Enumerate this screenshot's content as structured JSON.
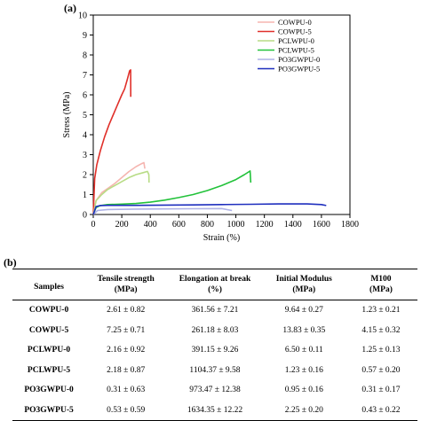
{
  "panel_a_label": "(a)",
  "panel_b_label": "(b)",
  "chart_data": {
    "type": "line",
    "title": "",
    "xlabel": "Strain (%)",
    "ylabel": "Stress (MPa)",
    "xlim": [
      0,
      1800
    ],
    "ylim": [
      0,
      10
    ],
    "xticks": [
      "0",
      "200",
      "400",
      "600",
      "800",
      "1000",
      "1200",
      "1400",
      "1600",
      "1800"
    ],
    "yticks": [
      "0",
      "1",
      "2",
      "3",
      "4",
      "5",
      "6",
      "7",
      "8",
      "9",
      "10"
    ],
    "legend_position": "top-right",
    "grid": false,
    "series": [
      {
        "name": "COWPU-0",
        "color": "#f5b5b0",
        "x": [
          0,
          20,
          60,
          100,
          150,
          200,
          250,
          300,
          340,
          355,
          362
        ],
        "y": [
          0,
          0.7,
          1.1,
          1.3,
          1.55,
          1.85,
          2.15,
          2.4,
          2.55,
          2.6,
          2.3
        ]
      },
      {
        "name": "COWPU-5",
        "color": "#e0302a",
        "x": [
          0,
          10,
          25,
          50,
          80,
          110,
          140,
          170,
          200,
          220,
          240,
          255,
          262,
          263
        ],
        "y": [
          0,
          1.8,
          2.5,
          3.2,
          3.9,
          4.5,
          5.0,
          5.5,
          6.0,
          6.3,
          6.8,
          7.2,
          7.25,
          5.9
        ]
      },
      {
        "name": "PCLWPU-0",
        "color": "#b8dc86",
        "x": [
          0,
          20,
          60,
          100,
          150,
          200,
          250,
          300,
          350,
          380,
          390,
          391
        ],
        "y": [
          0,
          0.7,
          1.0,
          1.25,
          1.45,
          1.65,
          1.85,
          2.0,
          2.1,
          2.16,
          2.0,
          1.6
        ]
      },
      {
        "name": "PCLWPU-5",
        "color": "#22c23a",
        "x": [
          0,
          20,
          50,
          100,
          200,
          300,
          400,
          500,
          600,
          700,
          800,
          900,
          1000,
          1060,
          1100,
          1104
        ],
        "y": [
          0,
          0.35,
          0.45,
          0.5,
          0.52,
          0.55,
          0.62,
          0.72,
          0.85,
          1.0,
          1.2,
          1.45,
          1.75,
          2.0,
          2.18,
          1.6
        ]
      },
      {
        "name": "PO3GWPU-0",
        "color": "#aeb2e6",
        "x": [
          0,
          30,
          100,
          300,
          500,
          700,
          900,
          973
        ],
        "y": [
          0,
          0.2,
          0.25,
          0.27,
          0.28,
          0.29,
          0.3,
          0.2
        ]
      },
      {
        "name": "PO3GWPU-5",
        "color": "#1f2fbe",
        "x": [
          0,
          20,
          50,
          100,
          300,
          500,
          700,
          900,
          1100,
          1300,
          1500,
          1600,
          1634
        ],
        "y": [
          0,
          0.4,
          0.45,
          0.46,
          0.46,
          0.47,
          0.48,
          0.5,
          0.51,
          0.53,
          0.53,
          0.5,
          0.45
        ]
      }
    ]
  },
  "table": {
    "headers": [
      {
        "top": "Samples",
        "bottom": ""
      },
      {
        "top": "Tensile strength",
        "bottom": "(MPa)"
      },
      {
        "top": "Elongation at break",
        "bottom": "(%)"
      },
      {
        "top": "Initial Modulus",
        "bottom": "(MPa)"
      },
      {
        "top": "M100",
        "bottom": "(MPa)"
      }
    ],
    "rows": [
      [
        "COWPU-0",
        "2.61 ± 0.82",
        "361.56 ± 7.21",
        "9.64 ± 0.27",
        "1.23 ± 0.21"
      ],
      [
        "COWPU-5",
        "7.25 ± 0.71",
        "261.18 ± 8.03",
        "13.83 ± 0.35",
        "4.15 ± 0.32"
      ],
      [
        "PCLWPU-0",
        "2.16 ± 0.92",
        "391.15 ± 9.26",
        "6.50 ± 0.11",
        "1.25 ± 0.13"
      ],
      [
        "PCLWPU-5",
        "2.18 ± 0.87",
        "1104.37 ± 9.58",
        "1.23 ± 0.16",
        "0.57 ± 0.20"
      ],
      [
        "PO3GWPU-0",
        "0.31 ± 0.63",
        "973.47 ± 12.38",
        "0.95 ± 0.16",
        "0.31 ± 0.17"
      ],
      [
        "PO3GWPU-5",
        "0.53 ± 0.59",
        "1634.35 ± 12.22",
        "2.25 ± 0.20",
        "0.43 ± 0.22"
      ]
    ]
  }
}
